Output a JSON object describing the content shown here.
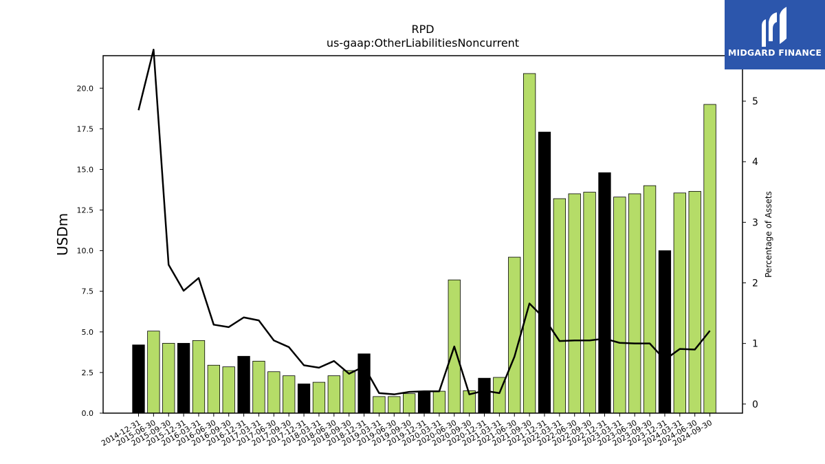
{
  "chart_data": {
    "type": "bar",
    "title": "RPD",
    "subtitle": "us-gaap:OtherLiabilitiesNoncurrent",
    "ylabel": "USDm",
    "y2label": "Percentage of Assets",
    "ylim": [
      0,
      22
    ],
    "y2lim": [
      -0.15,
      5.75
    ],
    "y_ticks": [
      "0.0",
      "2.5",
      "5.0",
      "7.5",
      "10.0",
      "12.5",
      "15.0",
      "17.5",
      "20.0"
    ],
    "y2_ticks": [
      "0",
      "1",
      "2",
      "3",
      "4",
      "5"
    ],
    "categories": [
      "2014-12-31",
      "2015-06-30",
      "2015-09-30",
      "2015-12-31",
      "2016-03-31",
      "2016-06-30",
      "2016-09-30",
      "2016-12-31",
      "2017-03-31",
      "2017-06-30",
      "2017-09-30",
      "2017-12-31",
      "2018-03-31",
      "2018-06-30",
      "2018-09-30",
      "2018-12-31",
      "2019-03-31",
      "2019-06-30",
      "2019-09-30",
      "2019-12-31",
      "2020-03-31",
      "2020-06-30",
      "2020-09-30",
      "2020-12-31",
      "2021-03-31",
      "2021-06-30",
      "2021-09-30",
      "2021-12-31",
      "2022-03-31",
      "2022-06-30",
      "2022-09-30",
      "2022-12-31",
      "2023-03-31",
      "2023-06-30",
      "2023-09-30",
      "2023-12-31",
      "2024-03-31",
      "2024-06-30",
      "2024-09-30"
    ],
    "series": [
      {
        "type": "bar",
        "values": [
          4.2,
          5.05,
          4.3,
          4.3,
          4.47,
          2.95,
          2.85,
          3.5,
          3.2,
          2.55,
          2.3,
          1.8,
          1.9,
          2.3,
          2.62,
          3.65,
          1.02,
          1.02,
          1.2,
          1.35,
          1.35,
          8.2,
          1.38,
          2.15,
          2.2,
          9.6,
          20.9,
          17.3,
          13.2,
          13.5,
          13.6,
          14.8,
          13.3,
          13.5,
          14.0,
          10.0,
          13.55,
          13.65,
          19.0
        ],
        "highlight": [
          true,
          false,
          false,
          true,
          false,
          false,
          false,
          true,
          false,
          false,
          false,
          true,
          false,
          false,
          false,
          true,
          false,
          false,
          false,
          true,
          false,
          false,
          false,
          true,
          false,
          false,
          false,
          true,
          false,
          false,
          false,
          true,
          false,
          false,
          false,
          true,
          false,
          false,
          false
        ]
      },
      {
        "type": "line",
        "axis": "right",
        "values": [
          4.85,
          5.85,
          2.3,
          1.87,
          2.08,
          1.31,
          1.27,
          1.43,
          1.38,
          1.05,
          0.94,
          0.64,
          0.6,
          0.71,
          0.5,
          0.62,
          0.18,
          0.16,
          0.2,
          0.21,
          0.21,
          0.95,
          0.16,
          0.22,
          0.18,
          0.78,
          1.66,
          1.41,
          1.04,
          1.05,
          1.05,
          1.08,
          1.01,
          1.0,
          1.0,
          0.73,
          0.91,
          0.9,
          1.21
        ]
      }
    ],
    "colors": {
      "bar": "#b5dc68",
      "highlight": "#000000",
      "line": "#000000"
    },
    "grid": false
  },
  "brand": {
    "name": "MIDGARD FINANCE"
  }
}
